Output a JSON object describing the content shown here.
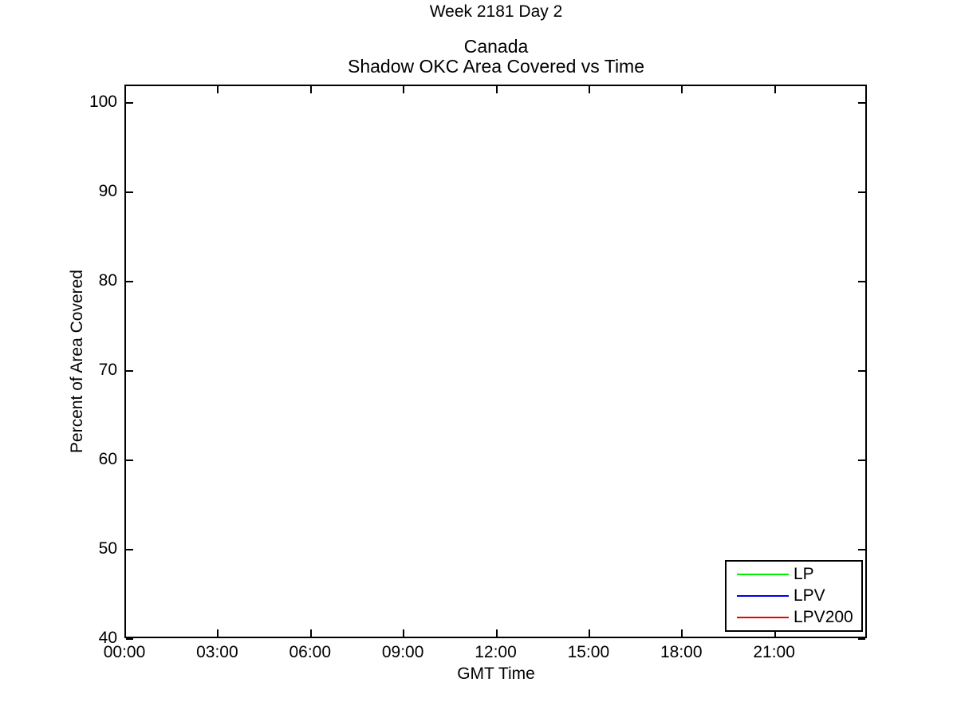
{
  "figure": {
    "suptitle": "Week 2181 Day 2",
    "title_line1": "Canada",
    "title_line2": "Shadow OKC Area Covered vs Time",
    "xlabel": "GMT Time",
    "ylabel": "Percent of Area Covered"
  },
  "legend": {
    "position": "bottom-right",
    "entries": [
      {
        "label": "LP",
        "color": "#00ee00"
      },
      {
        "label": "LPV",
        "color": "#0000ee"
      },
      {
        "label": "LPV200",
        "color": "#ee0000"
      }
    ]
  },
  "chart_data": {
    "type": "line",
    "suptitle": "Week 2181 Day 2",
    "title": "Canada\nShadow OKC Area Covered vs Time",
    "xlabel": "GMT Time",
    "ylabel": "Percent of Area Covered",
    "xlim": [
      0,
      24
    ],
    "ylim": [
      40,
      102
    ],
    "grid": false,
    "legend_position": "bottom-right",
    "xticks": [
      {
        "value": 0,
        "label": "00:00"
      },
      {
        "value": 3,
        "label": "03:00"
      },
      {
        "value": 6,
        "label": "06:00"
      },
      {
        "value": 9,
        "label": "09:00"
      },
      {
        "value": 12,
        "label": "12:00"
      },
      {
        "value": 15,
        "label": "15:00"
      },
      {
        "value": 18,
        "label": "18:00"
      },
      {
        "value": 21,
        "label": "21:00"
      }
    ],
    "yticks": [
      {
        "value": 40,
        "label": "40"
      },
      {
        "value": 50,
        "label": "50"
      },
      {
        "value": 60,
        "label": "60"
      },
      {
        "value": 70,
        "label": "70"
      },
      {
        "value": 80,
        "label": "80"
      },
      {
        "value": 90,
        "label": "90"
      },
      {
        "value": 100,
        "label": "100"
      }
    ],
    "series": [
      {
        "name": "LP",
        "color": "#00ee00",
        "x": [],
        "values": []
      },
      {
        "name": "LPV",
        "color": "#0000ee",
        "x": [],
        "values": []
      },
      {
        "name": "LPV200",
        "color": "#ee0000",
        "x": [],
        "values": []
      }
    ]
  }
}
